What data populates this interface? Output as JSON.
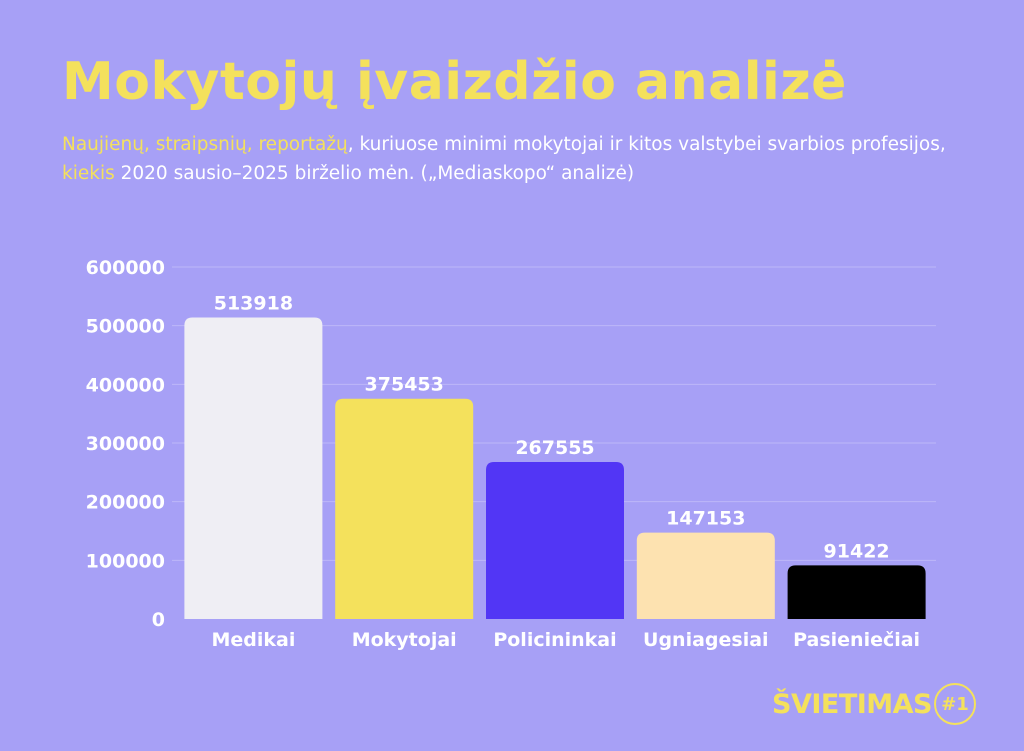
{
  "header": {
    "title": "Mokytojų įvaizdžio analizė",
    "subtitle_parts": {
      "hl1": "Naujienų, straipsnių, reportažų",
      "text1": ", kuriuose minimi mokytojai ir kitos valstybei svarbios profesijos, ",
      "hl2": "kiekis",
      "text2": " 2020 sausio–2025 birželio mėn.  („Mediaskopo“ analizė)"
    }
  },
  "chart_data": {
    "type": "bar",
    "title": "Mokytojų įvaizdžio analizė",
    "categories": [
      "Medikai",
      "Mokytojai",
      "Policininkai",
      "Ugniagesiai",
      "Pasieniečiai"
    ],
    "values": [
      513918,
      375453,
      267555,
      147153,
      91422
    ],
    "colors": [
      "#efeef4",
      "#f4e15c",
      "#5236f5",
      "#fde2b0",
      "#000000"
    ],
    "yticks": [
      0,
      100000,
      200000,
      300000,
      400000,
      500000,
      600000
    ],
    "ylim": [
      0,
      600000
    ],
    "xlabel": "",
    "ylabel": "",
    "grid": true
  },
  "logo": {
    "text": "ŠVIETIMAS",
    "badge": "#1"
  }
}
